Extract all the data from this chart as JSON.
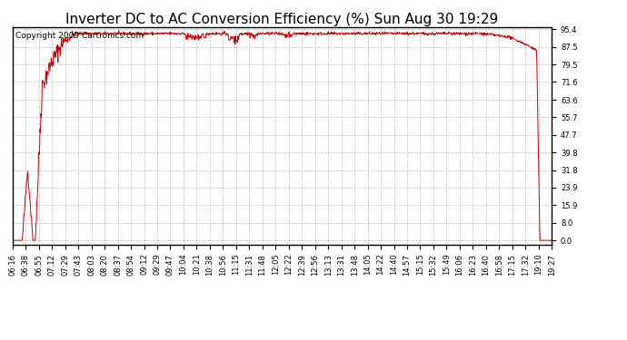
{
  "title": "Inverter DC to AC Conversion Efficiency (%) Sun Aug 30 19:29",
  "copyright": "Copyright 2009 Cartronics.com",
  "line_color": "#cc0000",
  "background_color": "#ffffff",
  "plot_bg_color": "#ffffff",
  "grid_color": "#bbbbbb",
  "yticks": [
    0.0,
    8.0,
    15.9,
    23.9,
    31.8,
    39.8,
    47.7,
    55.7,
    63.6,
    71.6,
    79.5,
    87.5,
    95.4
  ],
  "ymax": 95.4,
  "ymin": 0.0,
  "x_labels": [
    "06:16",
    "06:38",
    "06:55",
    "07:12",
    "07:29",
    "07:43",
    "08:03",
    "08:20",
    "08:37",
    "08:54",
    "09:12",
    "09:29",
    "09:47",
    "10:04",
    "10:21",
    "10:38",
    "10:56",
    "11:15",
    "11:31",
    "11:48",
    "12:05",
    "12:22",
    "12:39",
    "12:56",
    "13:13",
    "13:31",
    "13:48",
    "14:05",
    "14:22",
    "14:40",
    "14:57",
    "15:15",
    "15:32",
    "15:49",
    "16:06",
    "16:23",
    "16:40",
    "16:58",
    "17:15",
    "17:32",
    "19:10",
    "19:27"
  ],
  "title_fontsize": 11,
  "tick_fontsize": 6,
  "copyright_fontsize": 6.5
}
